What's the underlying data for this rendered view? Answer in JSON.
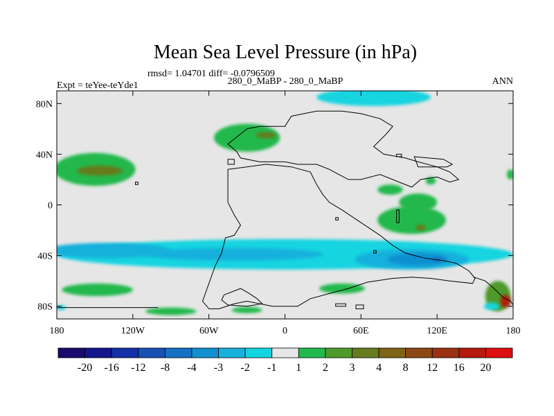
{
  "chart_data": {
    "type": "heatmap",
    "title": "Mean Sea Level Pressure (in hPa)",
    "stats": "rmsd= 1.04701 diff= -0.0796509",
    "left_subtitle": "Expt = teYee-teYde1",
    "center_subtitle": "280_0_MaBP - 280_0_MaBP",
    "right_subtitle": "ANN",
    "x_ticks": [
      {
        "lon": -180,
        "label": "180"
      },
      {
        "lon": -120,
        "label": "120W"
      },
      {
        "lon": -60,
        "label": "60W"
      },
      {
        "lon": 0,
        "label": "0"
      },
      {
        "lon": 60,
        "label": "60E"
      },
      {
        "lon": 120,
        "label": "120E"
      },
      {
        "lon": 180,
        "label": "180"
      }
    ],
    "y_ticks": [
      {
        "lat": 80,
        "label": "80N"
      },
      {
        "lat": 40,
        "label": "40N"
      },
      {
        "lat": 0,
        "label": "0"
      },
      {
        "lat": -40,
        "label": "40S"
      },
      {
        "lat": -80,
        "label": "80S"
      }
    ],
    "xlim": [
      -180,
      180
    ],
    "ylim": [
      -90,
      90
    ],
    "colorbar": {
      "labels": [
        "-20",
        "-16",
        "-12",
        "-8",
        "-4",
        "-3",
        "-2",
        "-1",
        "1",
        "2",
        "3",
        "4",
        "8",
        "12",
        "16",
        "20"
      ],
      "colors": [
        "#1a0a6e",
        "#14148c",
        "#1430a8",
        "#1850b4",
        "#1670c4",
        "#1090d0",
        "#18b0dc",
        "#14d4e0",
        "#e6e6e6",
        "#22b84c",
        "#4e9a2a",
        "#667c1e",
        "#7e6414",
        "#8c4814",
        "#9a3212",
        "#b41a10",
        "#dc1010"
      ]
    },
    "fields": [
      {
        "band": "1 to 2",
        "color": "#22b84c",
        "lon": -150,
        "lat": 28,
        "dlon": 32,
        "dlat": 13
      },
      {
        "band": "3 to 4",
        "color": "#667c1e",
        "lon": -146,
        "lat": 27,
        "dlon": 18,
        "dlat": 4
      },
      {
        "band": "1 to 2",
        "color": "#22b84c",
        "lon": -30,
        "lat": 53,
        "dlon": 26,
        "dlat": 11
      },
      {
        "band": "3 to 4",
        "color": "#667c1e",
        "lon": -15,
        "lat": 55,
        "dlon": 8,
        "dlat": 2.5
      },
      {
        "band": "1 to 2",
        "color": "#22b84c",
        "lon": 100,
        "lat": -12,
        "dlon": 27,
        "dlat": 11
      },
      {
        "band": "1 to 2",
        "color": "#22b84c",
        "lon": 105,
        "lat": 2,
        "dlon": 15,
        "dlat": 7
      },
      {
        "band": "3 to 4",
        "color": "#667c1e",
        "lon": 107,
        "lat": -18,
        "dlon": 4,
        "dlat": 2.5
      },
      {
        "band": "1 to 2",
        "color": "#22b84c",
        "lon": 83,
        "lat": 12,
        "dlon": 10,
        "dlat": 4
      },
      {
        "band": "1 to 2",
        "color": "#22b84c",
        "lon": 115,
        "lat": 19,
        "dlon": 4,
        "dlat": 3
      },
      {
        "band": "1 to 2",
        "color": "#22b84c",
        "lon": 178,
        "lat": 24,
        "dlon": 3,
        "dlat": 4
      },
      {
        "band": "1 to 2",
        "color": "#22b84c",
        "lon": -148,
        "lat": -67,
        "dlon": 28,
        "dlat": 5
      },
      {
        "band": "1 to 2",
        "color": "#22b84c",
        "lon": 45,
        "lat": -66,
        "dlon": 18,
        "dlat": 4
      },
      {
        "band": "1 to 2",
        "color": "#22b84c",
        "lon": -90,
        "lat": -84,
        "dlon": 20,
        "dlat": 3
      },
      {
        "band": "1 to 2",
        "color": "#22b84c",
        "lon": -30,
        "lat": -83,
        "dlon": 12,
        "dlat": 2.5
      },
      {
        "band": "2 to 3",
        "color": "#4e9a2a",
        "lon": 168,
        "lat": -72,
        "dlon": 10,
        "dlat": 12
      },
      {
        "band": "12 to 16",
        "color": "#b41a10",
        "lon": 174,
        "lat": -76,
        "dlon": 4,
        "dlat": 5
      },
      {
        "band": "-2 to -1",
        "color": "#14d4e0",
        "lon": 70,
        "lat": 85,
        "dlon": 45,
        "dlat": 7
      },
      {
        "band": "-2 to -1",
        "color": "#14d4e0",
        "lon": 0,
        "lat": -39,
        "dlon": 180,
        "dlat": 12
      },
      {
        "band": "-3 to -2",
        "color": "#18b0dc",
        "lon": -140,
        "lat": -36,
        "dlon": 50,
        "dlat": 6
      },
      {
        "band": "-3 to -2",
        "color": "#18b0dc",
        "lon": -40,
        "lat": -39,
        "dlon": 70,
        "dlat": 5
      },
      {
        "band": "-3 to -2",
        "color": "#18b0dc",
        "lon": 100,
        "lat": -43,
        "dlon": 45,
        "dlat": 8
      },
      {
        "band": "-4 to -3",
        "color": "#1090d0",
        "lon": 105,
        "lat": -43,
        "dlon": 24,
        "dlat": 5
      },
      {
        "band": "-8 to -4",
        "color": "#1670c4",
        "lon": 120,
        "lat": -43,
        "dlon": 4,
        "dlat": 2
      },
      {
        "band": "-2 to -1",
        "color": "#14d4e0",
        "lon": -177,
        "lat": -81,
        "dlon": 4,
        "dlat": 2
      },
      {
        "band": "-2 to -1",
        "color": "#14d4e0",
        "lon": 163,
        "lat": -80,
        "dlon": 6,
        "dlat": 3
      }
    ],
    "coastlines": [
      {
        "name": "laurasia",
        "lonlat": [
          [
            -30,
            60
          ],
          [
            -20,
            62
          ],
          [
            0,
            62
          ],
          [
            5,
            70
          ],
          [
            15,
            72
          ],
          [
            25,
            74
          ],
          [
            45,
            74
          ],
          [
            60,
            72
          ],
          [
            75,
            68
          ],
          [
            85,
            62
          ],
          [
            80,
            56
          ],
          [
            70,
            46
          ],
          [
            78,
            40
          ],
          [
            95,
            37
          ],
          [
            105,
            34
          ],
          [
            120,
            30
          ],
          [
            130,
            26
          ],
          [
            137,
            20
          ],
          [
            130,
            18
          ],
          [
            120,
            22
          ],
          [
            107,
            20
          ],
          [
            100,
            14
          ],
          [
            90,
            18
          ],
          [
            75,
            24
          ],
          [
            60,
            20
          ],
          [
            50,
            20
          ],
          [
            35,
            28
          ],
          [
            25,
            32
          ],
          [
            10,
            32
          ],
          [
            0,
            34
          ],
          [
            -20,
            34
          ],
          [
            -35,
            37
          ],
          [
            -38,
            42
          ],
          [
            -45,
            48
          ],
          [
            -40,
            52
          ],
          [
            -30,
            60
          ]
        ]
      },
      {
        "name": "gondwana",
        "lonlat": [
          [
            -45,
            28
          ],
          [
            -30,
            30
          ],
          [
            -15,
            32
          ],
          [
            5,
            30
          ],
          [
            20,
            26
          ],
          [
            25,
            16
          ],
          [
            30,
            8
          ],
          [
            35,
            2
          ],
          [
            45,
            -4
          ],
          [
            60,
            -14
          ],
          [
            75,
            -24
          ],
          [
            80,
            -28
          ],
          [
            85,
            -32
          ],
          [
            95,
            -38
          ],
          [
            110,
            -42
          ],
          [
            125,
            -44
          ],
          [
            135,
            -46
          ],
          [
            145,
            -52
          ],
          [
            150,
            -58
          ],
          [
            148,
            -62
          ],
          [
            130,
            -60
          ],
          [
            115,
            -58
          ],
          [
            100,
            -57
          ],
          [
            85,
            -58
          ],
          [
            65,
            -61
          ],
          [
            50,
            -66
          ],
          [
            35,
            -70
          ],
          [
            20,
            -74
          ],
          [
            10,
            -80
          ],
          [
            -10,
            -80
          ],
          [
            -30,
            -76
          ],
          [
            -40,
            -78
          ],
          [
            -52,
            -82
          ],
          [
            -60,
            -82
          ],
          [
            -65,
            -76
          ],
          [
            -60,
            -62
          ],
          [
            -55,
            -48
          ],
          [
            -50,
            -38
          ],
          [
            -47,
            -26
          ],
          [
            -40,
            -24
          ],
          [
            -35,
            -16
          ],
          [
            -40,
            -8
          ],
          [
            -45,
            2
          ],
          [
            -45,
            14
          ],
          [
            -45,
            28
          ]
        ]
      },
      {
        "name": "inner-south-land",
        "lonlat": [
          [
            -48,
            -71
          ],
          [
            -35,
            -66
          ],
          [
            -28,
            -70
          ],
          [
            -22,
            -74
          ],
          [
            -18,
            -78
          ],
          [
            -30,
            -80
          ],
          [
            -45,
            -79
          ],
          [
            -50,
            -75
          ],
          [
            -48,
            -71
          ]
        ]
      },
      {
        "name": "island-a",
        "lonlat": [
          [
            -45,
            32
          ],
          [
            -40,
            32
          ],
          [
            -40,
            36
          ],
          [
            -45,
            36
          ],
          [
            -45,
            32
          ]
        ]
      },
      {
        "name": "island-b",
        "lonlat": [
          [
            88,
            -4
          ],
          [
            90,
            -4
          ],
          [
            90,
            -14
          ],
          [
            88,
            -14
          ],
          [
            88,
            -4
          ]
        ]
      },
      {
        "name": "island-c",
        "lonlat": [
          [
            88,
            40
          ],
          [
            92,
            40
          ],
          [
            92,
            38
          ],
          [
            88,
            38
          ],
          [
            88,
            40
          ]
        ]
      },
      {
        "name": "island-d",
        "lonlat": [
          [
            102,
            38
          ],
          [
            125,
            36
          ],
          [
            132,
            32
          ],
          [
            128,
            30
          ],
          [
            105,
            30
          ],
          [
            102,
            38
          ]
        ]
      },
      {
        "name": "island-e",
        "lonlat": [
          [
            40,
            -78
          ],
          [
            48,
            -78
          ],
          [
            48,
            -80
          ],
          [
            40,
            -80
          ],
          [
            40,
            -78
          ]
        ]
      },
      {
        "name": "island-f",
        "lonlat": [
          [
            56,
            -79
          ],
          [
            62,
            -79
          ],
          [
            62,
            -82
          ],
          [
            56,
            -82
          ],
          [
            56,
            -79
          ]
        ]
      },
      {
        "name": "island-g",
        "lonlat": [
          [
            40,
            -10
          ],
          [
            42,
            -10
          ],
          [
            42,
            -12
          ],
          [
            40,
            -12
          ],
          [
            40,
            -10
          ]
        ]
      },
      {
        "name": "island-h",
        "lonlat": [
          [
            -118,
            18
          ],
          [
            -116,
            18
          ],
          [
            -116,
            16
          ],
          [
            -118,
            16
          ],
          [
            -118,
            18
          ]
        ]
      },
      {
        "name": "island-i",
        "lonlat": [
          [
            70,
            -36
          ],
          [
            72,
            -36
          ],
          [
            72,
            -38
          ],
          [
            70,
            -38
          ],
          [
            70,
            -36
          ]
        ]
      },
      {
        "name": "antarctic-line",
        "lonlat": [
          [
            -180,
            -81
          ],
          [
            -100,
            -81
          ]
        ],
        "open": true
      },
      {
        "name": "antarctic-east",
        "lonlat": [
          [
            149,
            -57
          ],
          [
            158,
            -60
          ],
          [
            165,
            -66
          ],
          [
            172,
            -73
          ],
          [
            178,
            -76
          ],
          [
            180,
            -79
          ]
        ],
        "open": true
      }
    ]
  }
}
